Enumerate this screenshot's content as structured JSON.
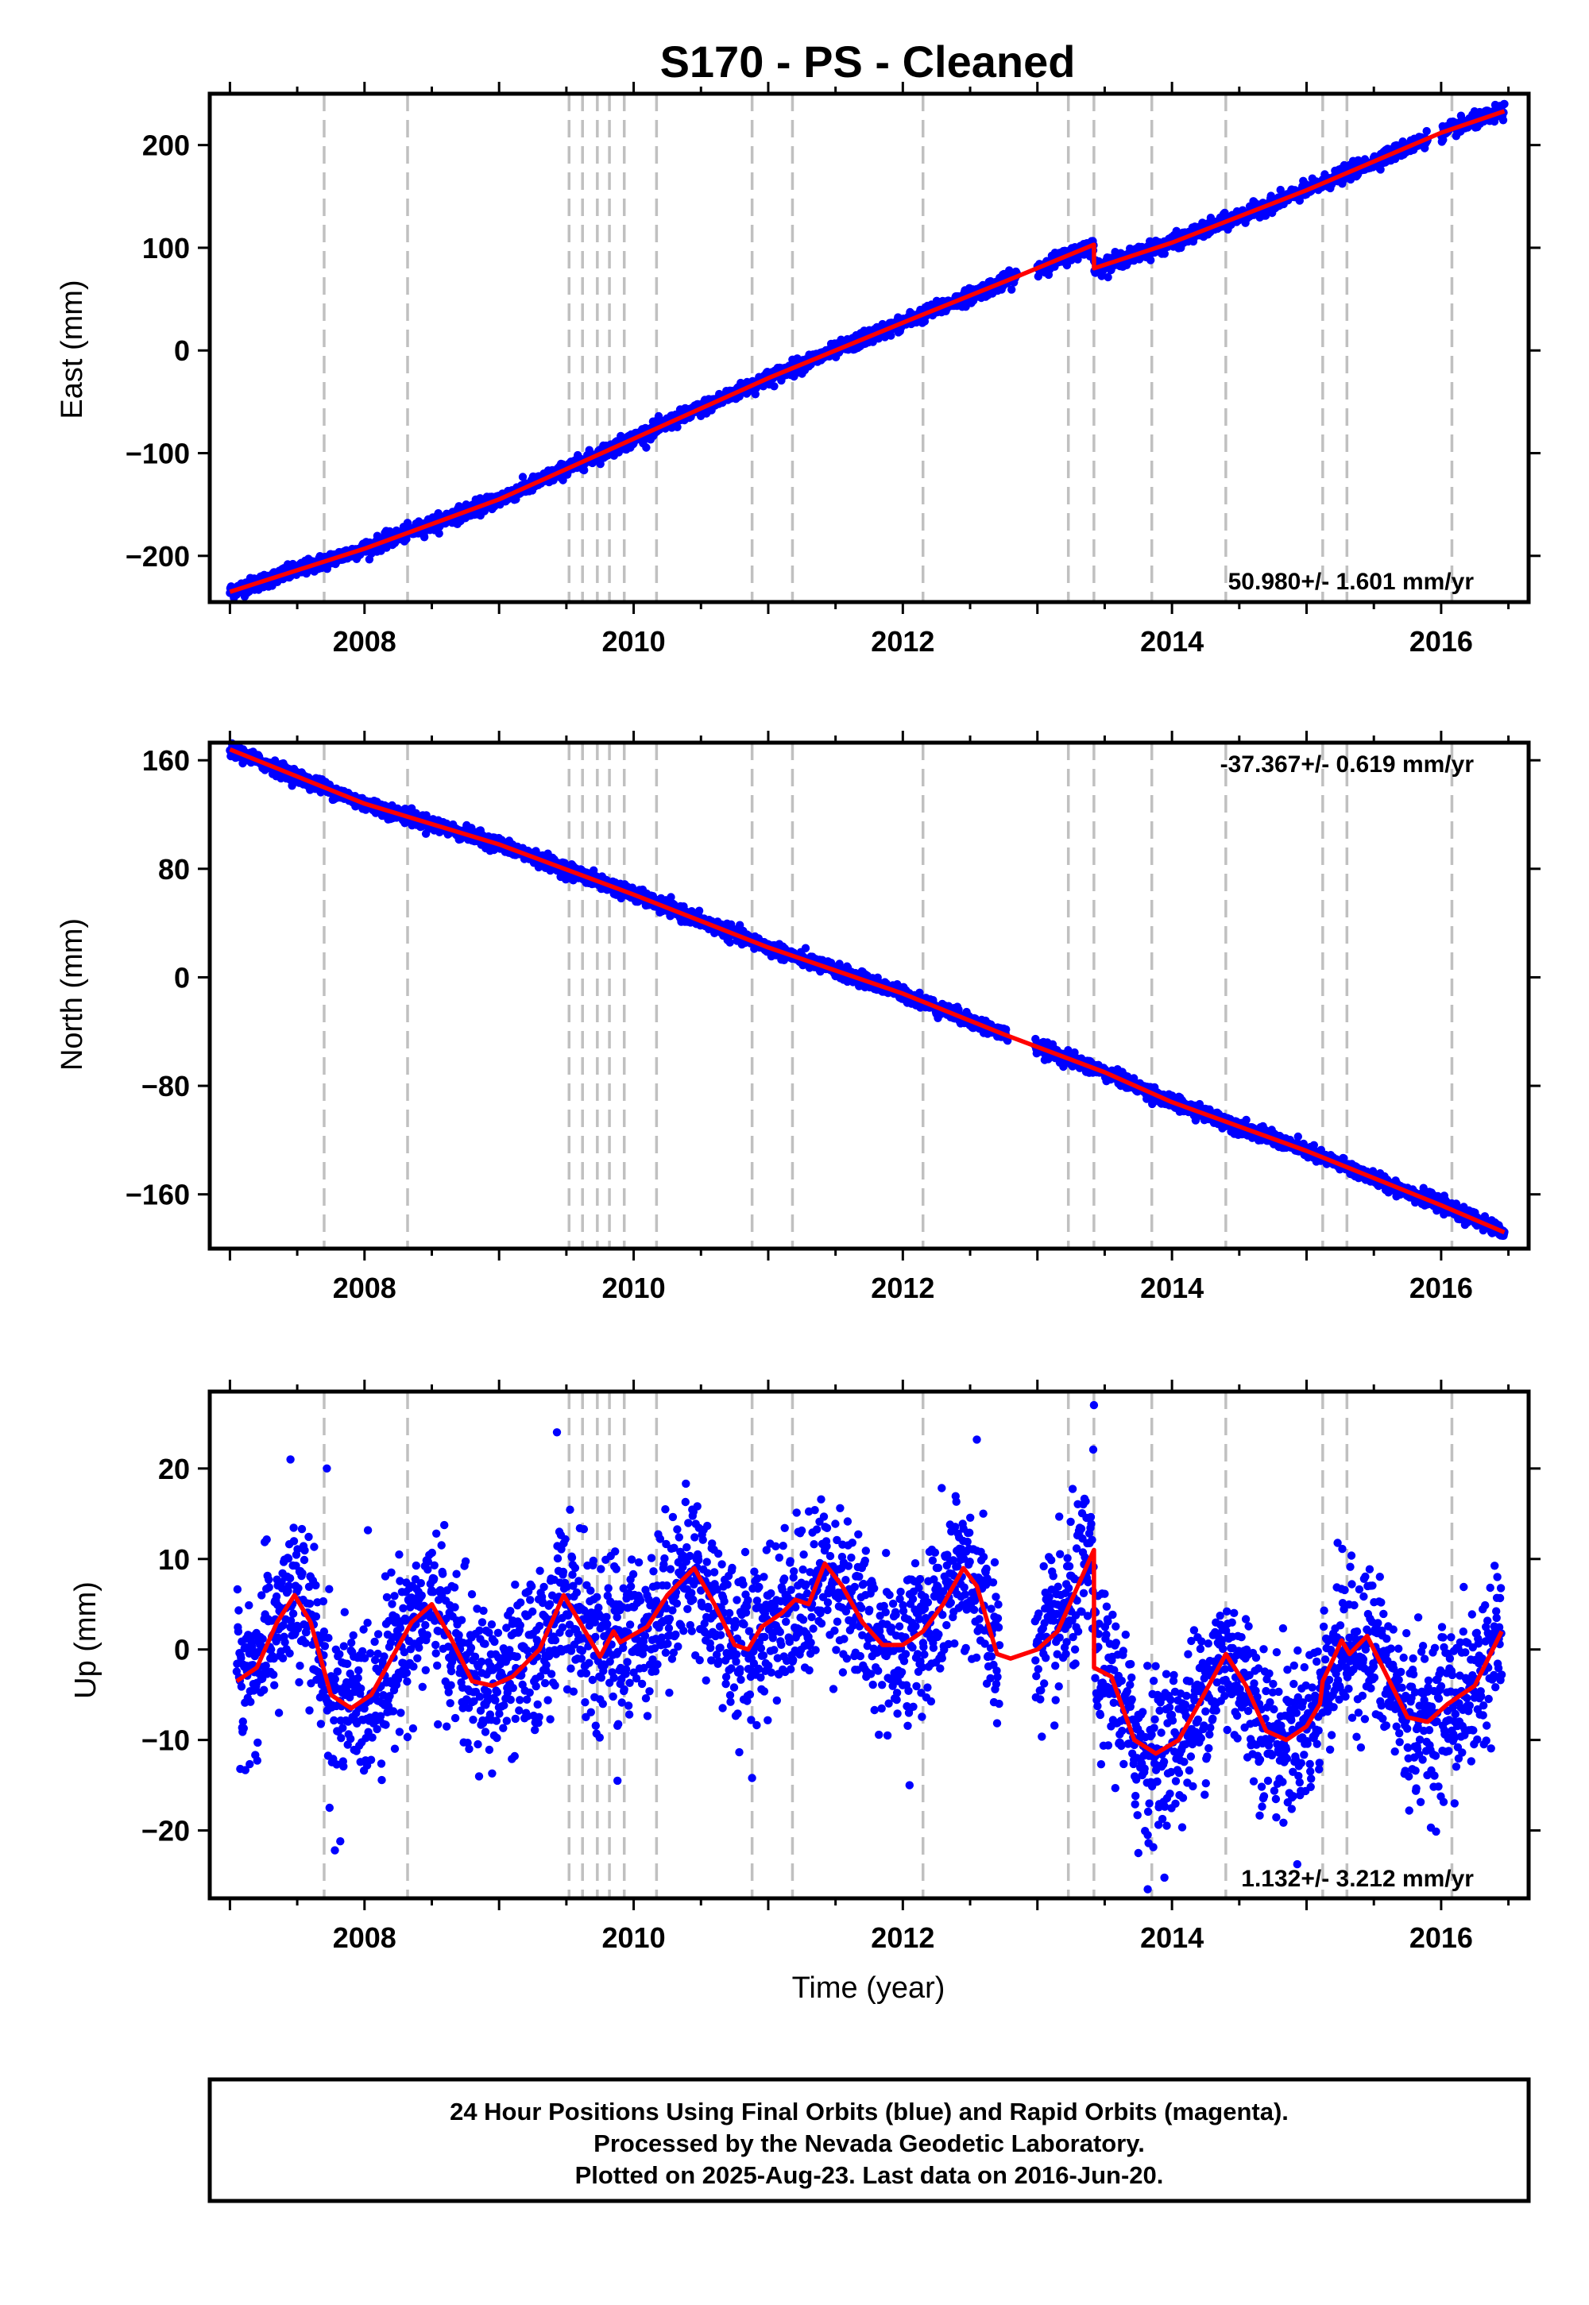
{
  "title": "S170  - PS - Cleaned",
  "colors": {
    "points": "#0000ff",
    "model": "#ff0000",
    "events": "#c0c0c0",
    "frame": "#000000"
  },
  "chart_data": [
    {
      "type": "scatter",
      "ylabel": "East (mm)",
      "xlabel": "",
      "xlim": [
        2006.85,
        2016.65
      ],
      "ylim": [
        -245,
        250
      ],
      "xticks": [
        "2008",
        "2010",
        "2012",
        "2014",
        "2016"
      ],
      "yticks": [
        "200",
        "100",
        "0",
        "−100",
        "−200"
      ],
      "rate_text": "50.980+/- 1.601 mm/yr",
      "rate_position": "bottom-right",
      "events": [
        2007.7,
        2008.32,
        2009.52,
        2009.62,
        2009.73,
        2009.82,
        2009.93,
        2010.17,
        2010.88,
        2011.18,
        2012.15,
        2013.23,
        2013.42,
        2013.85,
        2014.4,
        2015.12,
        2015.3,
        2016.08
      ],
      "model": [
        [
          2007.0,
          -235
        ],
        [
          2008.0,
          -193
        ],
        [
          2009.0,
          -145
        ],
        [
          2010.0,
          -86
        ],
        [
          2011.0,
          -27
        ],
        [
          2012.0,
          27
        ],
        [
          2012.85,
          72
        ],
        [
          2013.42,
          103
        ],
        [
          2013.421,
          80
        ],
        [
          2014.0,
          105
        ],
        [
          2015.0,
          156
        ],
        [
          2016.0,
          212
        ],
        [
          2016.47,
          233
        ]
      ],
      "scatter": {
        "n": 3200,
        "noise": 3.5,
        "gaps": [
          [
            2012.85,
            2013.0
          ],
          [
            2015.9,
            2016.0
          ]
        ],
        "outliers": []
      }
    },
    {
      "type": "scatter",
      "ylabel": "North (mm)",
      "xlabel": "",
      "xlim": [
        2006.85,
        2016.65
      ],
      "ylim": [
        -200,
        173
      ],
      "xticks": [
        "2008",
        "2010",
        "2012",
        "2014",
        "2016"
      ],
      "yticks": [
        "160",
        "80",
        "0",
        "−80",
        "−160"
      ],
      "rate_text": "-37.367+/- 0.619 mm/yr",
      "rate_position": "top-right",
      "events": [
        2007.7,
        2008.32,
        2009.52,
        2009.62,
        2009.73,
        2009.82,
        2009.93,
        2010.17,
        2010.88,
        2011.18,
        2012.15,
        2013.23,
        2013.42,
        2013.85,
        2014.4,
        2015.12,
        2015.3,
        2016.08
      ],
      "model": [
        [
          2007.0,
          168
        ],
        [
          2008.0,
          128
        ],
        [
          2009.0,
          98
        ],
        [
          2010.0,
          61
        ],
        [
          2011.0,
          22
        ],
        [
          2012.0,
          -12
        ],
        [
          2012.75,
          -42
        ],
        [
          2013.5,
          -70
        ],
        [
          2014.0,
          -92
        ],
        [
          2015.0,
          -128
        ],
        [
          2016.0,
          -168
        ],
        [
          2016.47,
          -188
        ]
      ],
      "scatter": {
        "n": 3200,
        "noise": 2.5,
        "gaps": [
          [
            2012.78,
            2012.98
          ]
        ],
        "outliers": []
      }
    },
    {
      "type": "scatter",
      "ylabel": "Up (mm)",
      "xlabel": "Time (year)",
      "xlim": [
        2006.85,
        2016.65
      ],
      "ylim": [
        -27.5,
        28.5
      ],
      "xticks": [
        "2008",
        "2010",
        "2012",
        "2014",
        "2016"
      ],
      "yticks": [
        "20",
        "10",
        "0",
        "−10",
        "−20"
      ],
      "rate_text": "1.132+/- 3.212 mm/yr",
      "rate_position": "bottom-right",
      "events": [
        2007.7,
        2008.32,
        2009.52,
        2009.62,
        2009.73,
        2009.82,
        2009.93,
        2010.17,
        2010.88,
        2011.18,
        2012.15,
        2013.23,
        2013.42,
        2013.85,
        2014.4,
        2015.12,
        2015.3,
        2016.08
      ],
      "model": [
        [
          2007.05,
          -3.5
        ],
        [
          2007.2,
          -2
        ],
        [
          2007.35,
          3
        ],
        [
          2007.48,
          6
        ],
        [
          2007.6,
          3
        ],
        [
          2007.75,
          -5
        ],
        [
          2007.9,
          -6.5
        ],
        [
          2008.05,
          -5
        ],
        [
          2008.2,
          -1
        ],
        [
          2008.35,
          3
        ],
        [
          2008.5,
          5
        ],
        [
          2008.65,
          1
        ],
        [
          2008.8,
          -3.5
        ],
        [
          2008.95,
          -4
        ],
        [
          2009.1,
          -3
        ],
        [
          2009.3,
          0
        ],
        [
          2009.48,
          6
        ],
        [
          2009.6,
          3
        ],
        [
          2009.75,
          -0.8
        ],
        [
          2009.85,
          2
        ],
        [
          2009.9,
          0.8
        ],
        [
          2010.1,
          2.5
        ],
        [
          2010.25,
          6
        ],
        [
          2010.45,
          9
        ],
        [
          2010.6,
          5
        ],
        [
          2010.75,
          0.5
        ],
        [
          2010.85,
          0
        ],
        [
          2010.95,
          2.5
        ],
        [
          2011.1,
          4
        ],
        [
          2011.2,
          5.5
        ],
        [
          2011.3,
          5
        ],
        [
          2011.42,
          9.5
        ],
        [
          2011.55,
          7
        ],
        [
          2011.7,
          3
        ],
        [
          2011.85,
          0.5
        ],
        [
          2012.0,
          0.5
        ],
        [
          2012.15,
          2
        ],
        [
          2012.3,
          5
        ],
        [
          2012.45,
          9
        ],
        [
          2012.55,
          7
        ],
        [
          2012.7,
          -0.5
        ],
        [
          2012.8,
          -1
        ],
        [
          2013.0,
          0
        ],
        [
          2013.15,
          2
        ],
        [
          2013.3,
          7
        ],
        [
          2013.42,
          11
        ],
        [
          2013.421,
          -2
        ],
        [
          2013.55,
          -3
        ],
        [
          2013.72,
          -10
        ],
        [
          2013.88,
          -11.5
        ],
        [
          2014.05,
          -10
        ],
        [
          2014.2,
          -6
        ],
        [
          2014.4,
          -0.5
        ],
        [
          2014.55,
          -4
        ],
        [
          2014.7,
          -9
        ],
        [
          2014.85,
          -10
        ],
        [
          2015.0,
          -8.5
        ],
        [
          2015.1,
          -6
        ],
        [
          2015.12,
          -3.5
        ],
        [
          2015.2,
          -1
        ],
        [
          2015.26,
          1
        ],
        [
          2015.32,
          -0.5
        ],
        [
          2015.45,
          1.5
        ],
        [
          2015.6,
          -3
        ],
        [
          2015.75,
          -7.5
        ],
        [
          2015.9,
          -8
        ],
        [
          2016.05,
          -6
        ],
        [
          2016.25,
          -4
        ],
        [
          2016.45,
          2
        ]
      ],
      "scatter": {
        "n": 3200,
        "noise": 4.3,
        "gaps": [
          [
            2012.72,
            2012.98
          ]
        ],
        "outliers": [
          [
            2007.78,
            -22.2
          ],
          [
            2007.82,
            -21.2
          ],
          [
            2013.82,
            -26.5
          ],
          [
            2013.42,
            27.0
          ],
          [
            2009.43,
            24.0
          ],
          [
            2007.72,
            20.0
          ],
          [
            2007.45,
            21.0
          ],
          [
            2012.55,
            23.2
          ],
          [
            2013.75,
            -22.5
          ],
          [
            2013.82,
            -20.5
          ],
          [
            2010.88,
            -14.2
          ],
          [
            2009.88,
            -14.5
          ],
          [
            2012.05,
            -15.0
          ],
          [
            2016.1,
            -17.0
          ]
        ]
      }
    }
  ],
  "footer": {
    "line1": "24 Hour Positions Using Final Orbits (blue) and Rapid Orbits (magenta).",
    "line2": "Processed by the Nevada Geodetic Laboratory.",
    "line3": "Plotted on 2025-Aug-23. Last data on 2016-Jun-20."
  }
}
